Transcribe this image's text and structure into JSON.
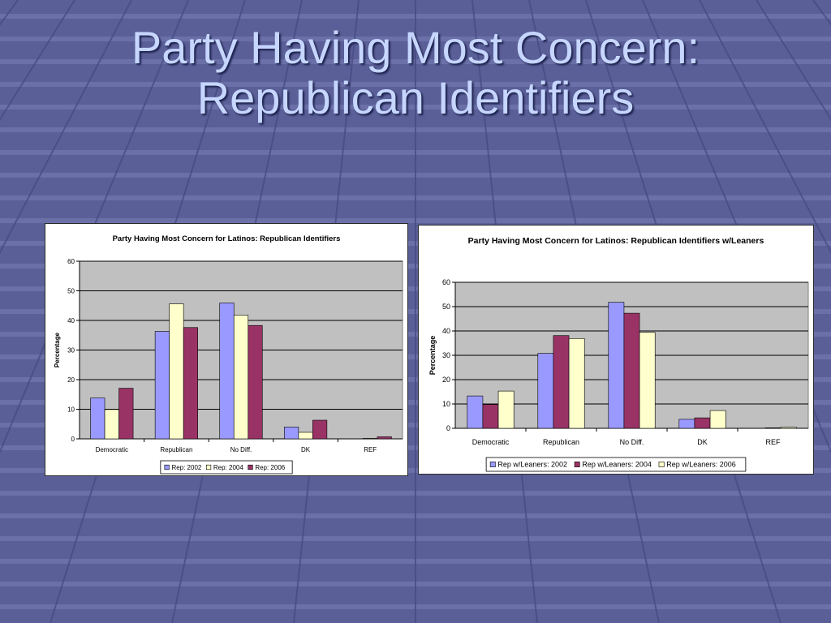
{
  "slide": {
    "title_line1": "Party Having Most Concern:",
    "title_line2": "Republican Identifiers"
  },
  "colors": {
    "background": "#5a5f97",
    "plot_area": "#c0c0c0",
    "series": [
      "#9999ff",
      "#ffffcc",
      "#993366"
    ]
  },
  "chart_data": [
    {
      "type": "bar",
      "title": "Party Having Most Concern for Latinos: Republican Identifiers",
      "xlabel": "",
      "ylabel": "Percentage",
      "ylim": [
        0,
        60
      ],
      "yticks": [
        0,
        10,
        20,
        30,
        40,
        50,
        60
      ],
      "grid": true,
      "legend_position": "bottom",
      "categories": [
        "Democratic",
        "Republican",
        "No Diff.",
        "DK",
        "REF"
      ],
      "series": [
        {
          "name": "Rep: 2002",
          "color": "#9999ff",
          "values": [
            13.8,
            36.3,
            45.9,
            4.0,
            0.0
          ]
        },
        {
          "name": "Rep: 2004",
          "color": "#ffffcc",
          "values": [
            9.9,
            45.6,
            41.8,
            2.2,
            0.2
          ]
        },
        {
          "name": "Rep: 2006",
          "color": "#993366",
          "values": [
            17.1,
            37.6,
            38.3,
            6.3,
            0.7
          ]
        }
      ]
    },
    {
      "type": "bar",
      "title": "Party Having Most Concern for Latinos: Republican Identifiers w/Leaners",
      "xlabel": "",
      "ylabel": "Percentage",
      "ylim": [
        0,
        60
      ],
      "yticks": [
        0,
        10,
        20,
        30,
        40,
        50,
        60
      ],
      "grid": true,
      "legend_position": "bottom",
      "categories": [
        "Democratic",
        "Republican",
        "No Diff.",
        "DK",
        "REF"
      ],
      "series": [
        {
          "name": "Rep w/Leaners: 2002",
          "color": "#9999ff",
          "values": [
            13.3,
            30.8,
            51.8,
            3.7,
            0.0
          ]
        },
        {
          "name": "Rep w/Leaners: 2004",
          "color": "#993366",
          "values": [
            9.8,
            38.1,
            47.3,
            4.3,
            0.2
          ]
        },
        {
          "name": "Rep w/Leaners: 2006",
          "color": "#ffffcc",
          "values": [
            15.3,
            36.9,
            39.4,
            7.3,
            0.5
          ]
        }
      ]
    }
  ]
}
